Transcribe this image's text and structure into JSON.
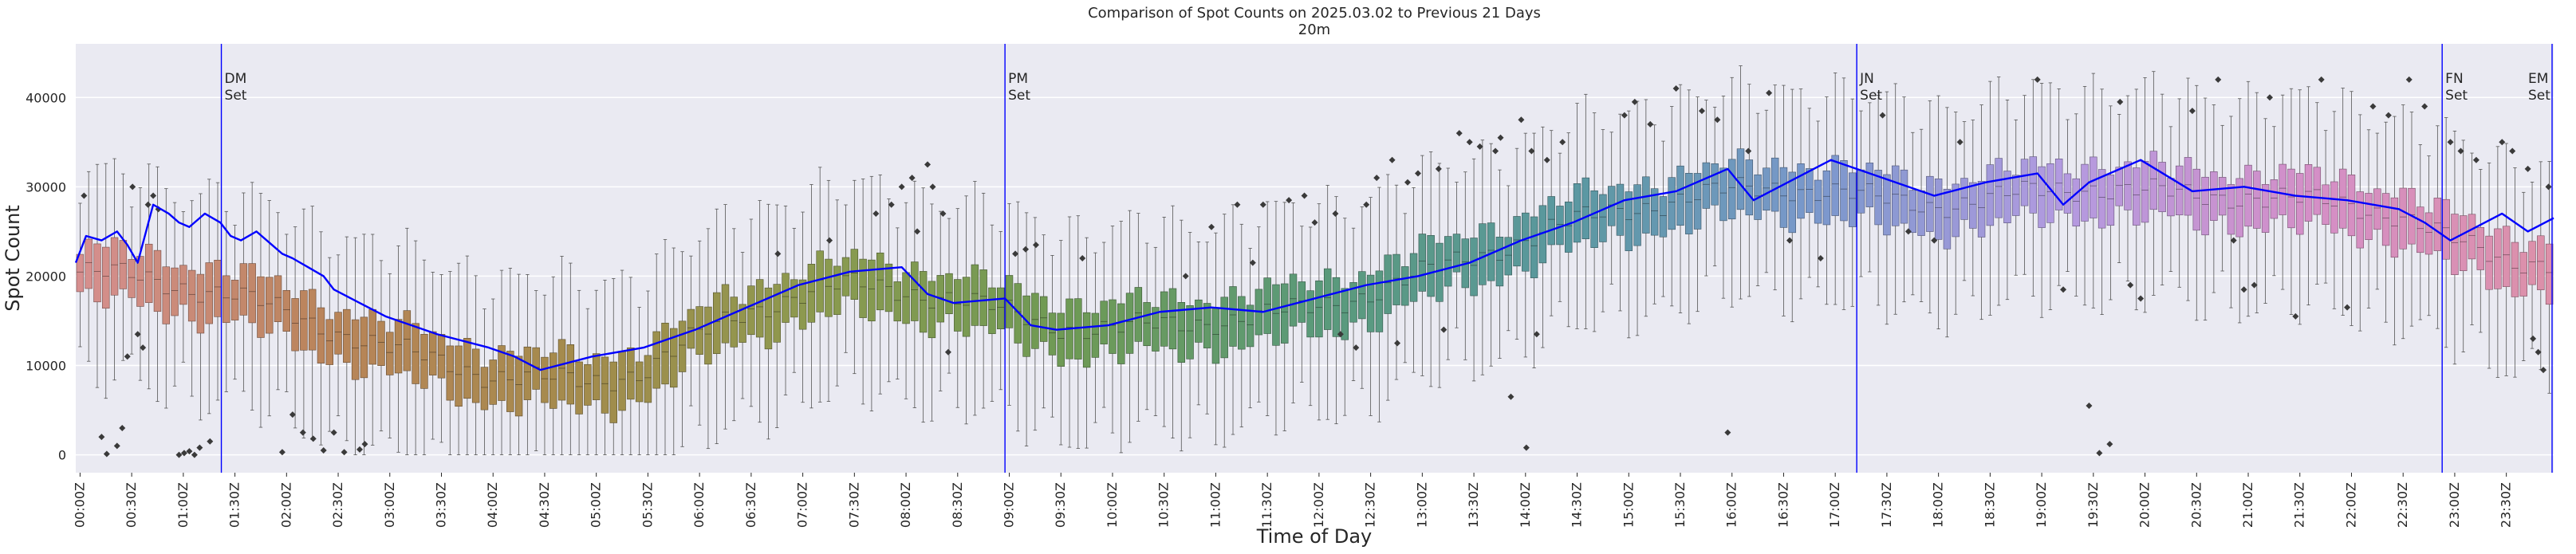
{
  "chart_data": {
    "type": "box",
    "title": "Comparison of Spot Counts on 2025.03.02 to Previous 21 Days",
    "subtitle": "20m",
    "xlabel": "Time of Day",
    "ylabel": "Spot Count",
    "ylim": [
      -2000,
      46000
    ],
    "yticks": [
      0,
      10000,
      20000,
      30000,
      40000
    ],
    "ytick_labels": [
      "0",
      "10000",
      "20000",
      "30000",
      "40000"
    ],
    "bin_minutes": 5,
    "n_bins": 288,
    "xtick_labels": [
      "00:00Z",
      "00:30Z",
      "01:00Z",
      "01:30Z",
      "02:00Z",
      "02:30Z",
      "03:00Z",
      "03:30Z",
      "04:00Z",
      "04:30Z",
      "05:00Z",
      "05:30Z",
      "06:00Z",
      "06:30Z",
      "07:00Z",
      "07:30Z",
      "08:00Z",
      "08:30Z",
      "09:00Z",
      "09:30Z",
      "10:00Z",
      "10:30Z",
      "11:00Z",
      "11:30Z",
      "12:00Z",
      "12:30Z",
      "13:00Z",
      "13:30Z",
      "14:00Z",
      "14:30Z",
      "15:00Z",
      "15:30Z",
      "16:00Z",
      "16:30Z",
      "17:00Z",
      "17:30Z",
      "18:00Z",
      "18:30Z",
      "19:00Z",
      "19:30Z",
      "20:00Z",
      "20:30Z",
      "21:00Z",
      "21:30Z",
      "22:00Z",
      "22:30Z",
      "23:00Z",
      "23:30Z"
    ],
    "median_profile": {
      "hours": [
        0,
        0.5,
        1,
        1.5,
        2,
        2.5,
        3,
        3.5,
        4,
        4.5,
        5,
        5.5,
        6,
        6.5,
        7,
        7.5,
        8,
        8.5,
        9,
        9.5,
        10,
        10.5,
        11,
        11.5,
        12,
        12.5,
        13,
        13.5,
        14,
        14.5,
        15,
        15.5,
        16,
        16.5,
        17,
        17.5,
        18,
        18.5,
        19,
        19.5,
        20,
        20.5,
        21,
        21.5,
        22,
        22.5,
        23,
        23.5,
        24
      ],
      "values": [
        20500,
        20000,
        19000,
        18000,
        16000,
        14000,
        12000,
        10500,
        9000,
        8500,
        8000,
        9500,
        13000,
        16000,
        18000,
        19000,
        18500,
        17500,
        16000,
        14500,
        14000,
        14500,
        15000,
        15500,
        16500,
        18000,
        20000,
        22000,
        24000,
        26000,
        27500,
        28500,
        29500,
        30000,
        29500,
        28500,
        28000,
        28500,
        29500,
        30000,
        29500,
        29000,
        29000,
        28500,
        28000,
        27000,
        24000,
        22000,
        21500
      ]
    },
    "current_day_line": {
      "label": "2025.03.02",
      "color": "#0000ff",
      "hours": [
        0,
        0.1,
        0.25,
        0.4,
        0.5,
        0.6,
        0.75,
        0.9,
        1.0,
        1.1,
        1.25,
        1.4,
        1.5,
        1.6,
        1.75,
        1.9,
        2.0,
        2.1,
        2.25,
        2.4,
        2.5,
        2.75,
        3.0,
        3.5,
        4.0,
        4.25,
        4.5,
        5.0,
        5.5,
        6.0,
        6.5,
        7.0,
        7.5,
        8.0,
        8.25,
        8.5,
        9.0,
        9.25,
        9.5,
        10.0,
        10.5,
        11.0,
        11.5,
        12.0,
        12.5,
        13.0,
        13.5,
        14.0,
        14.5,
        15.0,
        15.5,
        16.0,
        16.25,
        16.5,
        17.0,
        17.5,
        18.0,
        18.5,
        19.0,
        19.25,
        19.5,
        20.0,
        20.5,
        21.0,
        21.5,
        22.0,
        22.5,
        22.75,
        23.0,
        23.25,
        23.5,
        23.75,
        24.0
      ],
      "values": [
        21500,
        24500,
        24000,
        25000,
        23500,
        21500,
        28000,
        27000,
        26000,
        25500,
        27000,
        26000,
        24500,
        24000,
        25000,
        23500,
        22500,
        22000,
        21000,
        20000,
        18500,
        17000,
        15500,
        13500,
        12000,
        11000,
        9500,
        11000,
        12000,
        14000,
        16500,
        19000,
        20500,
        21000,
        18000,
        17000,
        17500,
        14500,
        14000,
        14500,
        16000,
        16500,
        16000,
        17500,
        19000,
        20000,
        21500,
        24000,
        26000,
        28500,
        29500,
        32000,
        28500,
        30000,
        33000,
        31000,
        29000,
        30500,
        31500,
        28000,
        30500,
        33000,
        29500,
        30000,
        29000,
        28500,
        27500,
        26000,
        24000,
        25500,
        27000,
        25000,
        26500
      ]
    },
    "hue_gradient": [
      "#d68f8f",
      "#b98459",
      "#a48b4c",
      "#8b9a4f",
      "#6e9a55",
      "#5a9a7a",
      "#5a98a0",
      "#7a98cc",
      "#b39ae0",
      "#d48fc7",
      "#dd90a8"
    ],
    "outliers": [
      {
        "h": 0.08,
        "v": 29000
      },
      {
        "h": 0.25,
        "v": 2000
      },
      {
        "h": 0.3,
        "v": 100
      },
      {
        "h": 0.4,
        "v": 1000
      },
      {
        "h": 0.45,
        "v": 3000
      },
      {
        "h": 0.5,
        "v": 11000
      },
      {
        "h": 0.55,
        "v": 30000
      },
      {
        "h": 0.6,
        "v": 13500
      },
      {
        "h": 0.65,
        "v": 12000
      },
      {
        "h": 0.7,
        "v": 28000
      },
      {
        "h": 0.75,
        "v": 29000
      },
      {
        "h": 0.8,
        "v": 27500
      },
      {
        "h": 1.0,
        "v": 0
      },
      {
        "h": 1.05,
        "v": 200
      },
      {
        "h": 1.1,
        "v": 400
      },
      {
        "h": 1.15,
        "v": 0
      },
      {
        "h": 1.2,
        "v": 800
      },
      {
        "h": 1.3,
        "v": 1500
      },
      {
        "h": 2.0,
        "v": 300
      },
      {
        "h": 2.1,
        "v": 4500
      },
      {
        "h": 2.2,
        "v": 2500
      },
      {
        "h": 2.3,
        "v": 1800
      },
      {
        "h": 2.4,
        "v": 500
      },
      {
        "h": 2.5,
        "v": 2500
      },
      {
        "h": 2.6,
        "v": 300
      },
      {
        "h": 2.75,
        "v": 600
      },
      {
        "h": 2.8,
        "v": 1200
      },
      {
        "h": 6.8,
        "v": 22500
      },
      {
        "h": 7.3,
        "v": 24000
      },
      {
        "h": 7.75,
        "v": 27000
      },
      {
        "h": 7.9,
        "v": 28000
      },
      {
        "h": 8.0,
        "v": 30000
      },
      {
        "h": 8.1,
        "v": 31000
      },
      {
        "h": 8.15,
        "v": 25000
      },
      {
        "h": 8.25,
        "v": 32500
      },
      {
        "h": 8.3,
        "v": 30000
      },
      {
        "h": 8.4,
        "v": 27000
      },
      {
        "h": 8.45,
        "v": 11500
      },
      {
        "h": 9.1,
        "v": 22500
      },
      {
        "h": 9.2,
        "v": 23000
      },
      {
        "h": 9.3,
        "v": 23500
      },
      {
        "h": 9.75,
        "v": 22000
      },
      {
        "h": 10.75,
        "v": 20000
      },
      {
        "h": 11.0,
        "v": 25500
      },
      {
        "h": 11.25,
        "v": 28000
      },
      {
        "h": 11.4,
        "v": 21500
      },
      {
        "h": 11.5,
        "v": 28000
      },
      {
        "h": 11.75,
        "v": 28500
      },
      {
        "h": 11.9,
        "v": 29000
      },
      {
        "h": 12.0,
        "v": 26000
      },
      {
        "h": 12.2,
        "v": 27000
      },
      {
        "h": 12.25,
        "v": 13500
      },
      {
        "h": 12.4,
        "v": 12000
      },
      {
        "h": 12.5,
        "v": 28000
      },
      {
        "h": 12.6,
        "v": 31000
      },
      {
        "h": 12.75,
        "v": 33000
      },
      {
        "h": 12.8,
        "v": 12500
      },
      {
        "h": 12.9,
        "v": 30500
      },
      {
        "h": 13.0,
        "v": 31500
      },
      {
        "h": 13.2,
        "v": 32000
      },
      {
        "h": 13.25,
        "v": 14000
      },
      {
        "h": 13.4,
        "v": 36000
      },
      {
        "h": 13.5,
        "v": 35000
      },
      {
        "h": 13.6,
        "v": 34500
      },
      {
        "h": 13.75,
        "v": 34000
      },
      {
        "h": 13.8,
        "v": 35500
      },
      {
        "h": 13.9,
        "v": 6500
      },
      {
        "h": 14.0,
        "v": 37500
      },
      {
        "h": 14.05,
        "v": 800
      },
      {
        "h": 14.1,
        "v": 34000
      },
      {
        "h": 14.15,
        "v": 13500
      },
      {
        "h": 14.25,
        "v": 33000
      },
      {
        "h": 14.4,
        "v": 35000
      },
      {
        "h": 15.0,
        "v": 38000
      },
      {
        "h": 15.1,
        "v": 39500
      },
      {
        "h": 15.25,
        "v": 37000
      },
      {
        "h": 15.5,
        "v": 41000
      },
      {
        "h": 15.75,
        "v": 38500
      },
      {
        "h": 15.9,
        "v": 37500
      },
      {
        "h": 16.0,
        "v": 2500
      },
      {
        "h": 16.2,
        "v": 34000
      },
      {
        "h": 16.4,
        "v": 40500
      },
      {
        "h": 16.6,
        "v": 24000
      },
      {
        "h": 16.9,
        "v": 22000
      },
      {
        "h": 17.5,
        "v": 38000
      },
      {
        "h": 17.75,
        "v": 25000
      },
      {
        "h": 18.0,
        "v": 24000
      },
      {
        "h": 18.25,
        "v": 35000
      },
      {
        "h": 19.0,
        "v": 42000
      },
      {
        "h": 19.25,
        "v": 18500
      },
      {
        "h": 19.5,
        "v": 5500
      },
      {
        "h": 19.6,
        "v": 200
      },
      {
        "h": 19.7,
        "v": 1200
      },
      {
        "h": 19.8,
        "v": 39500
      },
      {
        "h": 19.9,
        "v": 19000
      },
      {
        "h": 20.0,
        "v": 17500
      },
      {
        "h": 20.5,
        "v": 38500
      },
      {
        "h": 20.75,
        "v": 42000
      },
      {
        "h": 20.9,
        "v": 24000
      },
      {
        "h": 21.0,
        "v": 18500
      },
      {
        "h": 21.1,
        "v": 19000
      },
      {
        "h": 21.25,
        "v": 40000
      },
      {
        "h": 21.5,
        "v": 15500
      },
      {
        "h": 21.75,
        "v": 42000
      },
      {
        "h": 22.0,
        "v": 16500
      },
      {
        "h": 22.25,
        "v": 39000
      },
      {
        "h": 22.4,
        "v": 38000
      },
      {
        "h": 22.6,
        "v": 42000
      },
      {
        "h": 22.75,
        "v": 39000
      },
      {
        "h": 23.0,
        "v": 35000
      },
      {
        "h": 23.1,
        "v": 34000
      },
      {
        "h": 23.25,
        "v": 33000
      },
      {
        "h": 23.5,
        "v": 35000
      },
      {
        "h": 23.6,
        "v": 34000
      },
      {
        "h": 23.75,
        "v": 32000
      },
      {
        "h": 23.8,
        "v": 13000
      },
      {
        "h": 23.85,
        "v": 11500
      },
      {
        "h": 23.9,
        "v": 9500
      },
      {
        "h": 23.95,
        "v": 30000
      }
    ],
    "annotations": [
      {
        "hour": 1.41,
        "line1": "DM",
        "line2": "Set"
      },
      {
        "hour": 9.0,
        "line1": "PM",
        "line2": "Set"
      },
      {
        "hour": 17.25,
        "line1": "JN",
        "line2": "Set"
      },
      {
        "hour": 22.92,
        "line1": "FN",
        "line2": "Set"
      },
      {
        "hour": 24.1,
        "line1": "EM",
        "line2": "Set"
      }
    ],
    "annotation_line_color": "#0000ff",
    "background_color": "#eaeaf2",
    "grid_color": "#ffffff",
    "text_color": "#262626"
  }
}
